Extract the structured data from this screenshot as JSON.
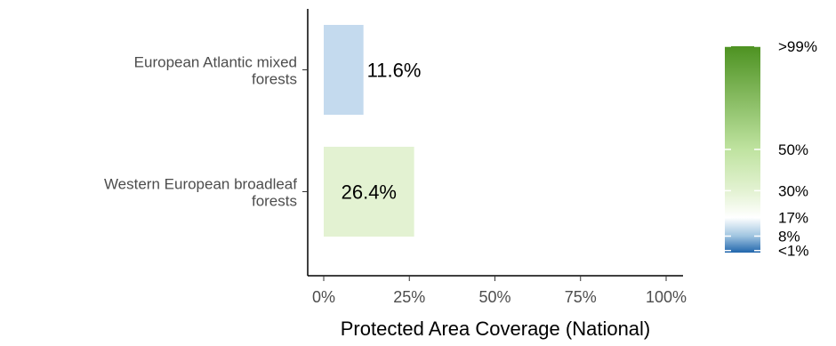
{
  "chart_data": {
    "type": "bar",
    "orientation": "horizontal",
    "categories": [
      [
        "European Atlantic mixed",
        "forests"
      ],
      [
        "Western European broadleaf",
        "forests"
      ]
    ],
    "values": [
      11.6,
      26.4
    ],
    "data_labels": [
      "11.6%",
      "26.4%"
    ],
    "bar_colors": [
      "#c4daee",
      "#e3f2d2"
    ],
    "xlabel": "Protected Area Coverage (National)",
    "ylabel": "",
    "xlim": [
      0,
      100
    ],
    "x_ticks": [
      0,
      25,
      50,
      75,
      100
    ],
    "x_tick_labels": [
      "0%",
      "25%",
      "50%",
      "75%",
      "100%"
    ],
    "grid": false,
    "legend": {
      "type": "colorbar",
      "placement": "right",
      "labels": [
        ">99%",
        "50%",
        "30%",
        "17%",
        "8%",
        "<1%"
      ],
      "values": [
        100,
        50,
        30,
        17,
        8,
        1
      ],
      "colors": [
        {
          "value": 0,
          "color": "#2166ac"
        },
        {
          "value": 8,
          "color": "#9fc4e0"
        },
        {
          "value": 17,
          "color": "#ffffff"
        },
        {
          "value": 30,
          "color": "#e3f2d2"
        },
        {
          "value": 50,
          "color": "#bfe3a0"
        },
        {
          "value": 100,
          "color": "#4d9221"
        }
      ]
    }
  }
}
